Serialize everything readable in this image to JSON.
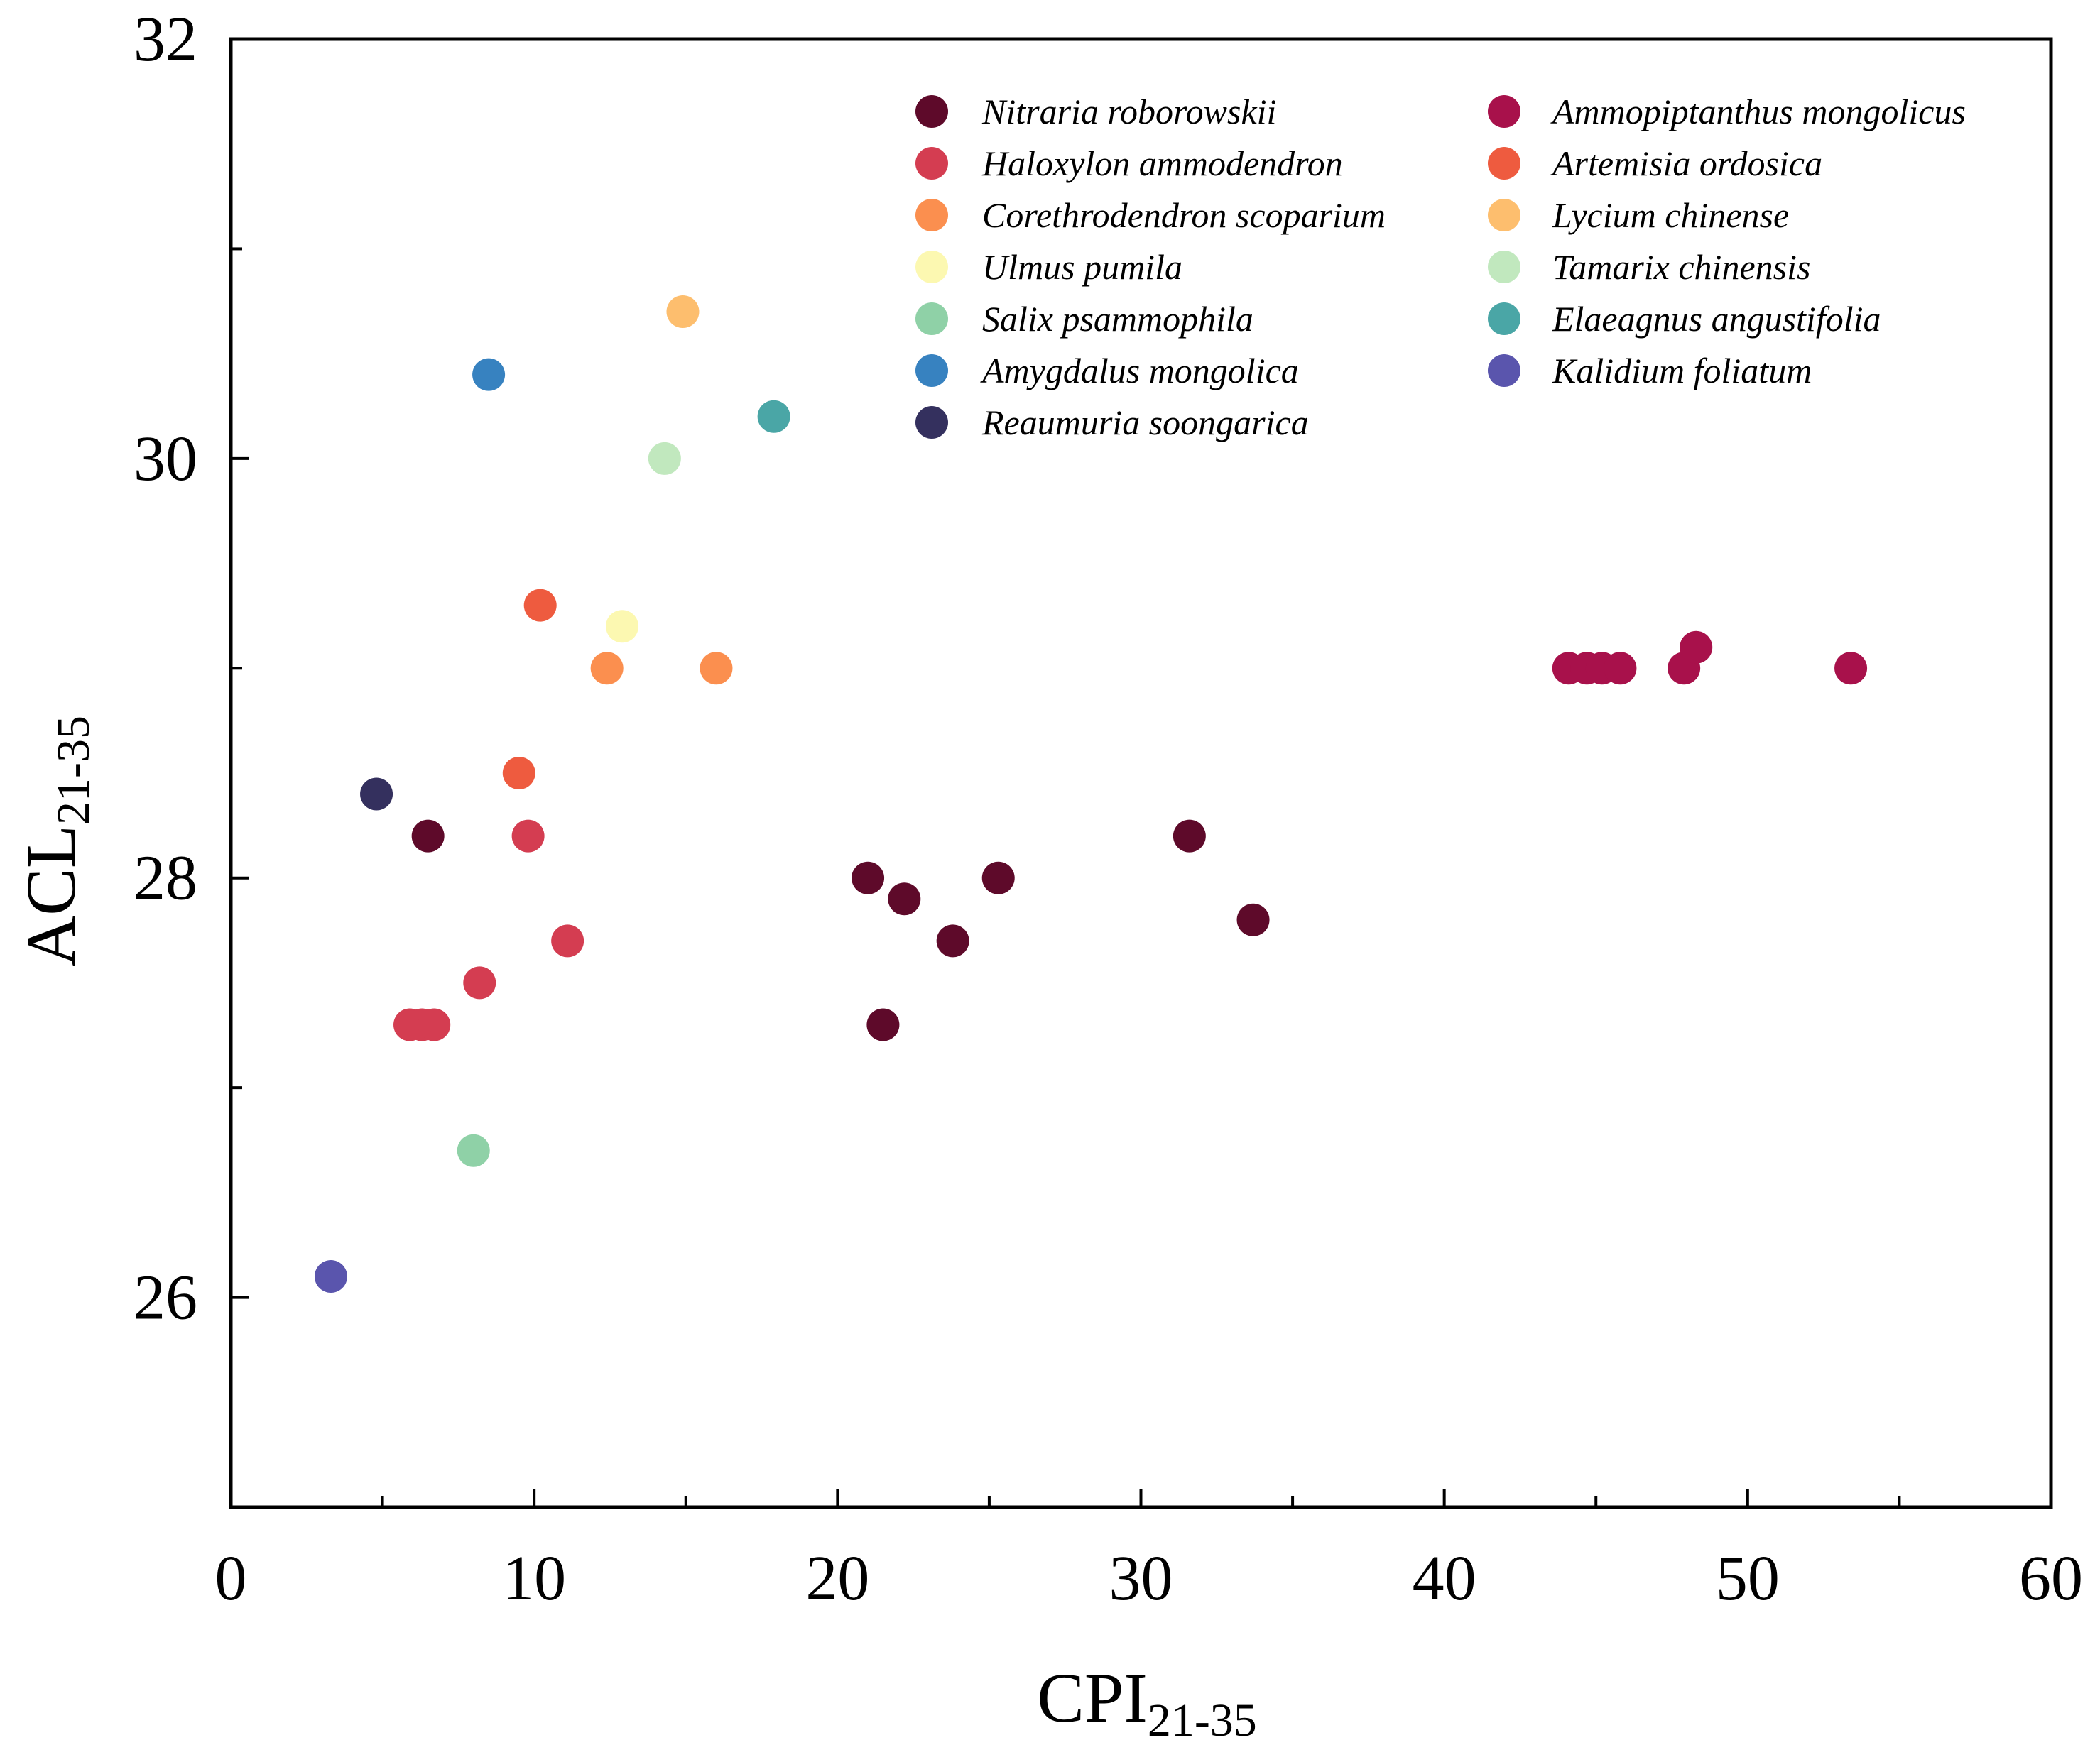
{
  "chart_data": {
    "type": "scatter",
    "xlabel": {
      "main": "CPI",
      "sub": "21-35"
    },
    "ylabel": {
      "main": "ACL",
      "sub": "21-35"
    },
    "xlim": [
      0,
      60
    ],
    "ylim": [
      25,
      32
    ],
    "xticks": [
      "0",
      "10",
      "20",
      "30",
      "40",
      "50",
      "60"
    ],
    "yticks": [
      "26",
      "28",
      "30",
      "32"
    ],
    "grid": false,
    "legend_position": "top-right",
    "series": [
      {
        "name": "Nitraria roborowskii",
        "color": "#5e0a2a",
        "points": [
          [
            6.5,
            28.2
          ],
          [
            21,
            28.0
          ],
          [
            22.2,
            27.9
          ],
          [
            23.8,
            27.7
          ],
          [
            25.3,
            28.0
          ],
          [
            21.5,
            27.3
          ],
          [
            31.6,
            28.2
          ],
          [
            33.7,
            27.8
          ]
        ]
      },
      {
        "name": "Ammopiptanthus mongolicus",
        "color": "#a8114b",
        "points": [
          [
            44.1,
            29.0
          ],
          [
            44.7,
            29.0
          ],
          [
            45.2,
            29.0
          ],
          [
            45.8,
            29.0
          ],
          [
            47.9,
            29.0
          ],
          [
            48.3,
            29.1
          ],
          [
            53.4,
            29.0
          ]
        ]
      },
      {
        "name": "Haloxylon ammodendron",
        "color": "#d43d51",
        "points": [
          [
            5.9,
            27.3
          ],
          [
            6.3,
            27.3
          ],
          [
            6.7,
            27.3
          ],
          [
            8.2,
            27.5
          ],
          [
            9.8,
            28.2
          ],
          [
            11.1,
            27.7
          ]
        ]
      },
      {
        "name": "Artemisia ordosica",
        "color": "#ee5b3f",
        "points": [
          [
            9.5,
            28.5
          ],
          [
            10.2,
            29.3
          ]
        ]
      },
      {
        "name": "Corethrodendron scoparium",
        "color": "#fb8f4f",
        "points": [
          [
            12.4,
            29.0
          ],
          [
            16.0,
            29.0
          ]
        ]
      },
      {
        "name": "Lycium chinense",
        "color": "#fdbe6e",
        "points": [
          [
            14.9,
            30.7
          ]
        ]
      },
      {
        "name": "Ulmus pumila",
        "color": "#fcf8b1",
        "points": [
          [
            12.9,
            29.2
          ]
        ]
      },
      {
        "name": "Tamarix chinensis",
        "color": "#c1e8be",
        "points": [
          [
            14.3,
            30.0
          ]
        ]
      },
      {
        "name": "Salix psammophila",
        "color": "#8fd1a7",
        "points": [
          [
            8.0,
            26.7
          ]
        ]
      },
      {
        "name": "Elaeagnus angustifolia",
        "color": "#4aa6a6",
        "points": [
          [
            17.9,
            30.2
          ]
        ]
      },
      {
        "name": "Amygdalus mongolica",
        "color": "#3782c0",
        "points": [
          [
            8.5,
            30.4
          ]
        ]
      },
      {
        "name": "Kalidium foliatum",
        "color": "#5a55ad",
        "points": [
          [
            3.3,
            26.1
          ]
        ]
      },
      {
        "name": "Reaumuria soongarica",
        "color": "#34305e",
        "points": [
          [
            4.8,
            28.4
          ]
        ]
      }
    ],
    "legend_layout": {
      "left": [
        "Nitraria roborowskii",
        "Haloxylon ammodendron",
        "Corethrodendron scoparium",
        "Ulmus pumila",
        "Salix psammophila",
        "Amygdalus mongolica",
        "Reaumuria soongarica"
      ],
      "right": [
        "Ammopiptanthus mongolicus",
        "Artemisia ordosica",
        "Lycium chinense",
        "Tamarix chinensis",
        "Elaeagnus angustifolia",
        "Kalidium foliatum"
      ]
    }
  }
}
